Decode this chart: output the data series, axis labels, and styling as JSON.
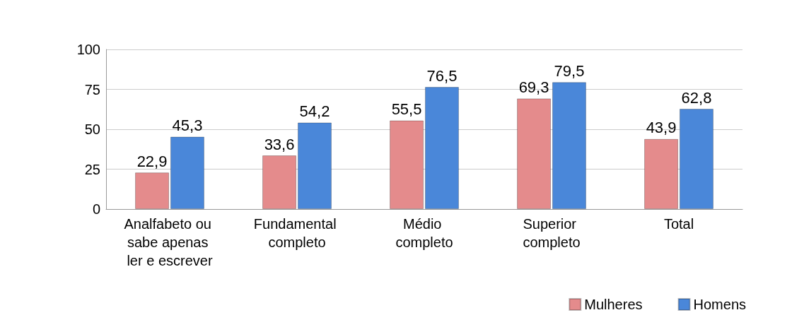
{
  "chart_data": {
    "type": "bar",
    "categories": [
      "Analfabeto ou sabe apenas ler e escrever",
      "Fundamental completo",
      "Médio completo",
      "Superior completo",
      "Total"
    ],
    "series": [
      {
        "name": "Mulheres",
        "color": "#e48b8c",
        "values": [
          22.9,
          33.6,
          55.5,
          69.3,
          43.9
        ],
        "value_labels": [
          "22,9",
          "33,6",
          "55,5",
          "69,3",
          "43,9"
        ]
      },
      {
        "name": "Homens",
        "color": "#4a87d9",
        "values": [
          45.3,
          54.2,
          76.5,
          79.5,
          62.8
        ],
        "value_labels": [
          "45,3",
          "54,2",
          "76,5",
          "79,5",
          "62,8"
        ]
      }
    ],
    "ylim": [
      0,
      100
    ],
    "yticks": [
      0,
      25,
      50,
      75,
      100
    ],
    "grid": "y",
    "legend": "bottom right"
  }
}
